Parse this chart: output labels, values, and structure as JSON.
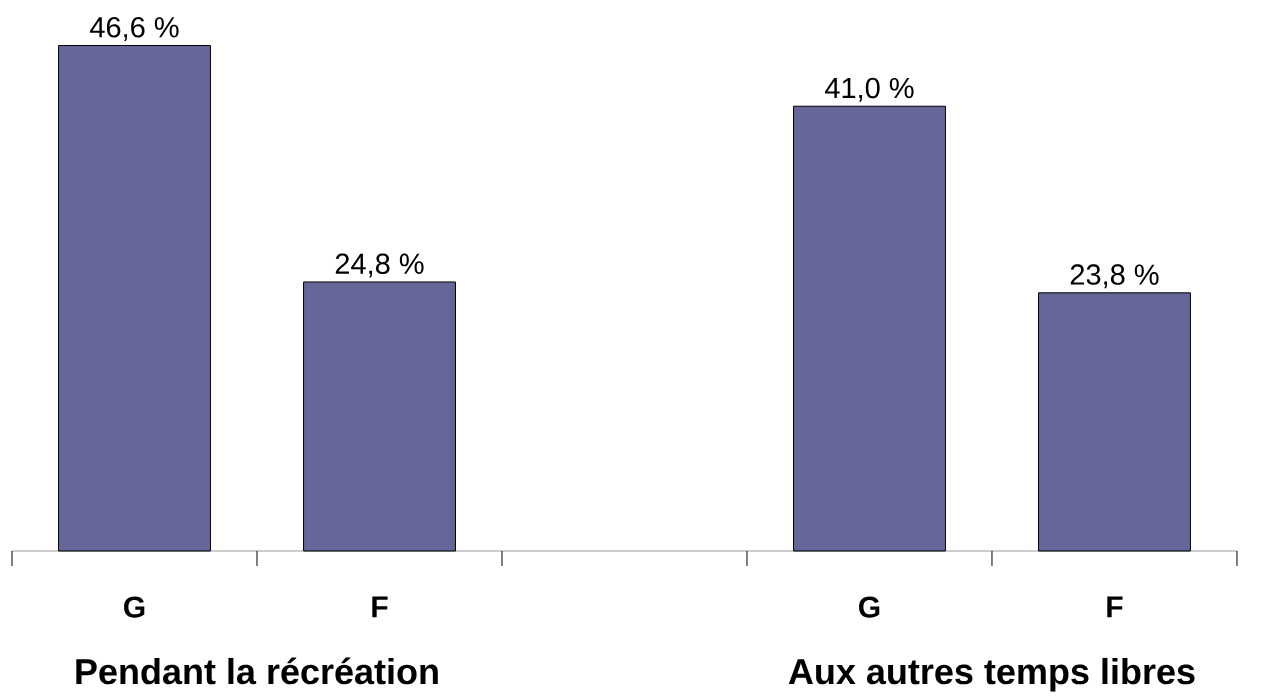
{
  "chart_data": {
    "type": "bar",
    "categories": [
      "G",
      "F",
      null,
      "G",
      "F"
    ],
    "values": [
      46.6,
      24.8,
      null,
      41.0,
      23.8
    ],
    "value_labels": [
      "46,6 %",
      "24,8 %",
      null,
      "41,0 %",
      "23,8 %"
    ],
    "color": "#666699",
    "annotations": [
      "Pendant la récréation",
      "Aux autres temps libres"
    ]
  }
}
